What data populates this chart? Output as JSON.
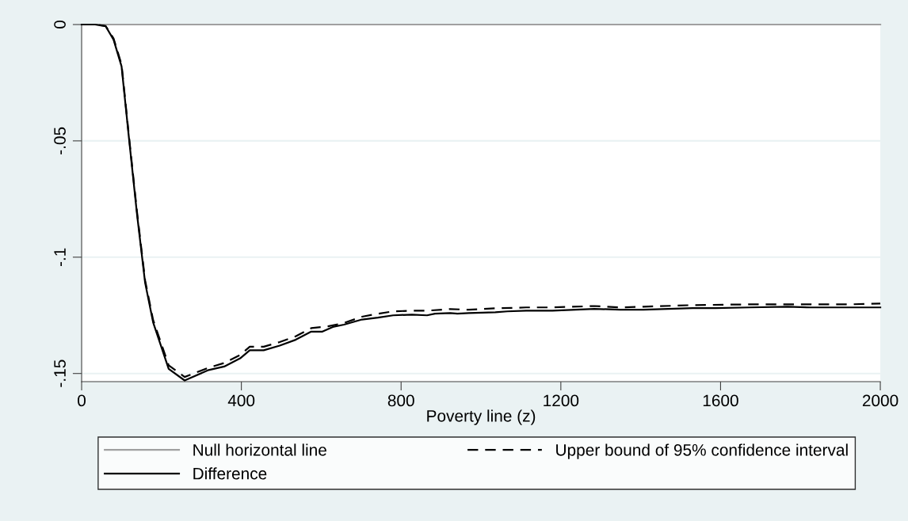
{
  "chart_data": {
    "type": "line",
    "xlabel": "Poverty line (z)",
    "xlim": [
      0,
      2000
    ],
    "xticks": [
      0,
      400,
      800,
      1200,
      1600,
      2000
    ],
    "ylim": [
      -0.1535,
      0
    ],
    "yticks": [
      0,
      {
        "value": -0.05,
        "label": "-.05"
      },
      {
        "value": -0.1,
        "label": "-.1"
      },
      {
        "value": -0.15,
        "label": "-.15"
      }
    ],
    "grid": "y",
    "legend": "bottom",
    "series": [
      {
        "name": "Null horizontal line",
        "color": "#a0a0a0",
        "line_style": "solid",
        "x": [
          0,
          2000
        ],
        "values": [
          0,
          0
        ]
      },
      {
        "name": "Difference",
        "color": "#000000",
        "line_style": "solid",
        "x": [
          0,
          34,
          60,
          80,
          100,
          119,
          139,
          159,
          179,
          218,
          258,
          318,
          357,
          397,
          421,
          456,
          496,
          536,
          575,
          603,
          629,
          657,
          702,
          742,
          780,
          827,
          865,
          885,
          923,
          941,
          970,
          1036,
          1066,
          1113,
          1179,
          1284,
          1349,
          1407,
          1530,
          1587,
          1672,
          1768,
          1825,
          2000
        ],
        "values": [
          0,
          0,
          -0.0007,
          -0.0065,
          -0.018,
          -0.0496,
          -0.082,
          -0.111,
          -0.128,
          -0.148,
          -0.153,
          -0.1485,
          -0.147,
          -0.1435,
          -0.14,
          -0.14,
          -0.138,
          -0.1355,
          -0.132,
          -0.132,
          -0.13,
          -0.129,
          -0.1268,
          -0.126,
          -0.125,
          -0.1247,
          -0.125,
          -0.1243,
          -0.124,
          -0.1243,
          -0.124,
          -0.1237,
          -0.1233,
          -0.123,
          -0.123,
          -0.1222,
          -0.1226,
          -0.1226,
          -0.1219,
          -0.1219,
          -0.1216,
          -0.1213,
          -0.1216,
          -0.1216
        ]
      },
      {
        "name": "Upper bound of 95% confidence interval",
        "color": "#000000",
        "line_style": "dashed",
        "x": [
          0,
          34,
          60,
          80,
          100,
          119,
          139,
          159,
          179,
          218,
          258,
          318,
          357,
          397,
          421,
          456,
          496,
          536,
          575,
          617,
          657,
          702,
          742,
          780,
          827,
          865,
          923,
          970,
          1036,
          1113,
          1179,
          1284,
          1349,
          1407,
          1530,
          1672,
          1768,
          1920,
          2000
        ],
        "values": [
          0,
          0,
          -0.0006,
          -0.006,
          -0.0172,
          -0.0488,
          -0.081,
          -0.11,
          -0.127,
          -0.1465,
          -0.1515,
          -0.1475,
          -0.1455,
          -0.142,
          -0.1385,
          -0.1385,
          -0.1365,
          -0.134,
          -0.1305,
          -0.1297,
          -0.1283,
          -0.1256,
          -0.1243,
          -0.1233,
          -0.123,
          -0.123,
          -0.1223,
          -0.1226,
          -0.122,
          -0.1216,
          -0.1216,
          -0.121,
          -0.1216,
          -0.1213,
          -0.1206,
          -0.1203,
          -0.1203,
          -0.1203,
          -0.1199
        ]
      }
    ]
  }
}
